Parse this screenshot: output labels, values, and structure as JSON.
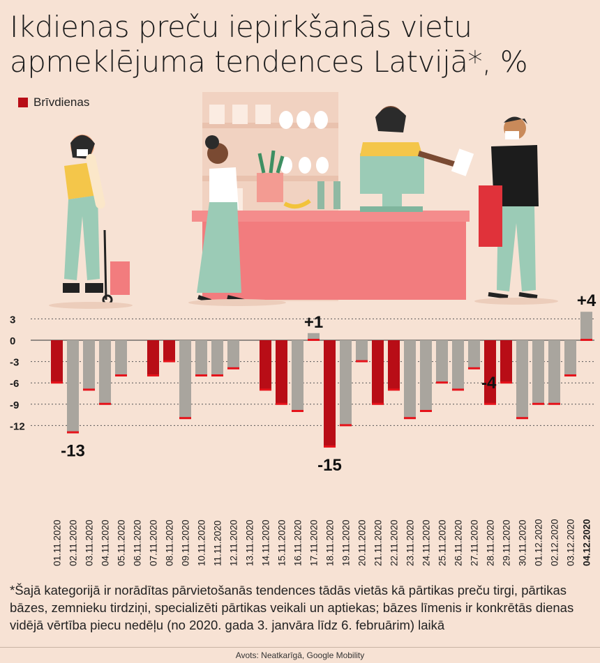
{
  "title": "Ikdienas preču iepirkšanās vietu apmeklējuma tendences Latvijā*, %",
  "legend": {
    "label": "Brīvdienas",
    "color": "#b80d16"
  },
  "chart_data": {
    "type": "bar",
    "categories": [
      "01.11.2020",
      "02.11.2020",
      "03.11.2020",
      "04.11.2020",
      "05.11.2020",
      "06.11.2020",
      "07.11.2020",
      "08.11.2020",
      "09.11.2020",
      "10.11.2020",
      "11.11.2020",
      "12.11.2020",
      "13.11.2020",
      "14.11.2020",
      "15.11.2020",
      "16.11.2020",
      "17.11.2020",
      "18.11.2020",
      "19.11.2020",
      "20.11.2020",
      "21.11.2020",
      "22.11.2020",
      "23.11.2020",
      "24.11.2020",
      "25.11.2020",
      "26.11.2020",
      "27.11.2020",
      "28.11.2020",
      "29.11.2020",
      "30.11.2020",
      "01.12.2020",
      "02.12.2020",
      "03.12.2020",
      "04.12.2020"
    ],
    "values": [
      -6,
      -13,
      -7,
      -9,
      -5,
      0,
      -5,
      -3,
      -11,
      -5,
      -5,
      -4,
      0,
      -7,
      -9,
      -10,
      1,
      -15,
      -12,
      -3,
      -9,
      -7,
      -11,
      -10,
      -6,
      -7,
      -4,
      -9,
      -6,
      -11,
      -9,
      -9,
      -5,
      4
    ],
    "holiday": [
      true,
      false,
      false,
      false,
      false,
      true,
      true,
      true,
      false,
      false,
      false,
      false,
      true,
      true,
      true,
      false,
      false,
      true,
      false,
      false,
      true,
      true,
      false,
      false,
      false,
      false,
      false,
      true,
      true,
      false,
      false,
      false,
      false,
      false
    ],
    "yticks": [
      "3",
      "0",
      "-3",
      "-6",
      "-9",
      "-12"
    ],
    "ylim": [
      -16,
      4
    ],
    "annotations": [
      {
        "category": "02.11.2020",
        "text": "-13"
      },
      {
        "category": "17.11.2020",
        "text": "+1"
      },
      {
        "category": "18.11.2020",
        "text": "-15"
      },
      {
        "category": "27.11.2020",
        "text": "-4"
      },
      {
        "category": "04.12.2020",
        "text": "+4"
      }
    ],
    "colors": {
      "holiday": "#b80d16",
      "weekday": "#a9a59e",
      "marker": "#e5131b",
      "grid": "#555555"
    }
  },
  "footnote": "*Šajā kategorijā ir norādītas pārvietošanās tendences tādās vietās kā pārtikas preču tirgi, pārtikas bāzes, zemnieku tirdziņi, specializēti pārtikas veikali un aptiekas; bāzes līmenis ir konkrētās dienas vidējā vērtība piecu nedēļu (no 2020. gada 3. janvāra līdz 6. februārim) laikā",
  "source": "Avots: Neatkarīgā, Google Mobility"
}
